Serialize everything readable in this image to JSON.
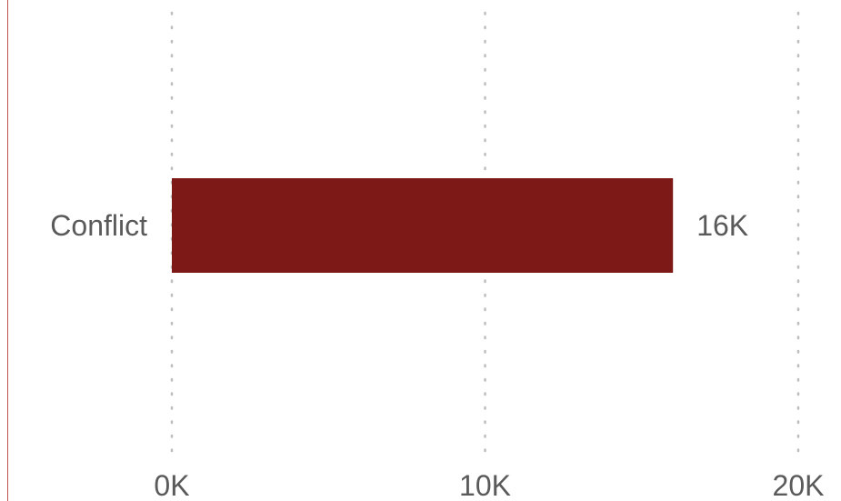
{
  "chart_data": {
    "type": "bar",
    "orientation": "horizontal",
    "categories": [
      "Conflict"
    ],
    "values": [
      16000
    ],
    "data_labels": [
      "16K"
    ],
    "xlim": [
      0,
      20000
    ],
    "x_ticks": [
      0,
      10000,
      20000
    ],
    "x_tick_labels": [
      "0K",
      "10K",
      "20K"
    ],
    "grid": "vertical dotted",
    "colors": {
      "bar": "#7d1a18",
      "grid": "#bdbdbd",
      "text": "#5a5a5a",
      "frame": "#c0504d"
    }
  }
}
